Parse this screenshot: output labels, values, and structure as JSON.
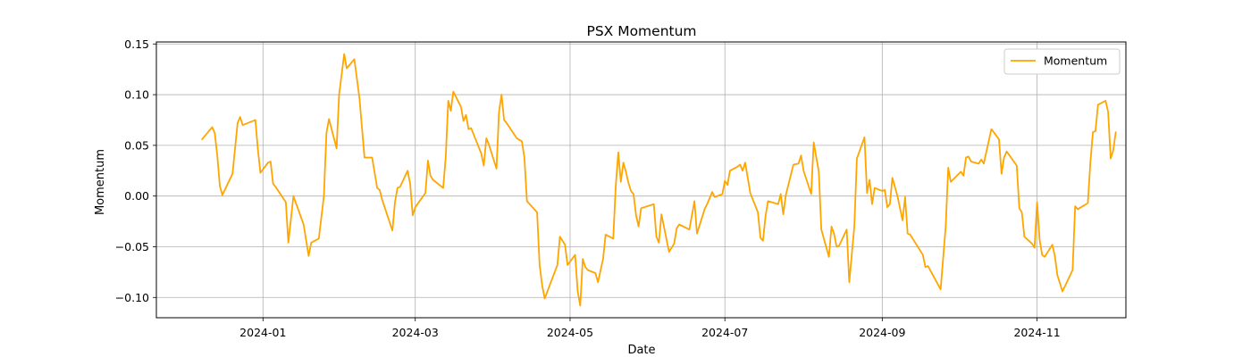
{
  "chart_data": {
    "type": "line",
    "title": "PSX Momentum",
    "xlabel": "Date",
    "ylabel": "Momentum",
    "xlim": [
      "2023-11-20",
      "2024-12-06"
    ],
    "ylim": [
      -0.12,
      0.152
    ],
    "grid": true,
    "legend_position": "top-right",
    "line_color": "#FFA500",
    "x_ticks": [
      {
        "label": "2024-01",
        "date": "2024-01-01"
      },
      {
        "label": "2024-03",
        "date": "2024-03-01"
      },
      {
        "label": "2024-05",
        "date": "2024-05-01"
      },
      {
        "label": "2024-07",
        "date": "2024-07-01"
      },
      {
        "label": "2024-09",
        "date": "2024-09-01"
      },
      {
        "label": "2024-11",
        "date": "2024-11-01"
      }
    ],
    "y_ticks": [
      {
        "label": "−0.10",
        "value": -0.1
      },
      {
        "label": "−0.05",
        "value": -0.05
      },
      {
        "label": "0.00",
        "value": 0.0
      },
      {
        "label": "0.05",
        "value": 0.05
      },
      {
        "label": "0.10",
        "value": 0.1
      },
      {
        "label": "0.15",
        "value": 0.15
      }
    ],
    "series": [
      {
        "name": "Momentum",
        "points": [
          [
            "2023-12-08",
            0.056
          ],
          [
            "2023-12-12",
            0.068
          ],
          [
            "2023-12-13",
            0.062
          ],
          [
            "2023-12-14",
            0.04
          ],
          [
            "2023-12-15",
            0.01
          ],
          [
            "2023-12-16",
            0.001
          ],
          [
            "2023-12-20",
            0.022
          ],
          [
            "2023-12-22",
            0.072
          ],
          [
            "2023-12-23",
            0.078
          ],
          [
            "2023-12-24",
            0.07
          ],
          [
            "2023-12-29",
            0.075
          ],
          [
            "2023-12-30",
            0.046
          ],
          [
            "2023-12-31",
            0.023
          ],
          [
            "2024-01-03",
            0.033
          ],
          [
            "2024-01-04",
            0.034
          ],
          [
            "2024-01-05",
            0.012
          ],
          [
            "2024-01-06",
            0.009
          ],
          [
            "2024-01-10",
            -0.006
          ],
          [
            "2024-01-11",
            -0.046
          ],
          [
            "2024-01-13",
            0.0
          ],
          [
            "2024-01-17",
            -0.028
          ],
          [
            "2024-01-19",
            -0.059
          ],
          [
            "2024-01-20",
            -0.046
          ],
          [
            "2024-01-23",
            -0.042
          ],
          [
            "2024-01-25",
            0.0
          ],
          [
            "2024-01-26",
            0.062
          ],
          [
            "2024-01-27",
            0.076
          ],
          [
            "2024-01-30",
            0.047
          ],
          [
            "2024-01-31",
            0.1
          ],
          [
            "2024-02-02",
            0.14
          ],
          [
            "2024-02-03",
            0.126
          ],
          [
            "2024-02-06",
            0.135
          ],
          [
            "2024-02-08",
            0.097
          ],
          [
            "2024-02-10",
            0.038
          ],
          [
            "2024-02-13",
            0.038
          ],
          [
            "2024-02-15",
            0.008
          ],
          [
            "2024-02-16",
            0.006
          ],
          [
            "2024-02-17",
            -0.004
          ],
          [
            "2024-02-21",
            -0.034
          ],
          [
            "2024-02-22",
            -0.006
          ],
          [
            "2024-02-23",
            0.008
          ],
          [
            "2024-02-24",
            0.009
          ],
          [
            "2024-02-27",
            0.025
          ],
          [
            "2024-02-28",
            0.012
          ],
          [
            "2024-02-29",
            -0.019
          ],
          [
            "2024-03-01",
            -0.011
          ],
          [
            "2024-03-05",
            0.003
          ],
          [
            "2024-03-06",
            0.035
          ],
          [
            "2024-03-07",
            0.02
          ],
          [
            "2024-03-08",
            0.016
          ],
          [
            "2024-03-12",
            0.008
          ],
          [
            "2024-03-13",
            0.038
          ],
          [
            "2024-03-14",
            0.094
          ],
          [
            "2024-03-15",
            0.084
          ],
          [
            "2024-03-16",
            0.103
          ],
          [
            "2024-03-19",
            0.088
          ],
          [
            "2024-03-20",
            0.074
          ],
          [
            "2024-03-21",
            0.08
          ],
          [
            "2024-03-22",
            0.066
          ],
          [
            "2024-03-23",
            0.067
          ],
          [
            "2024-03-27",
            0.042
          ],
          [
            "2024-03-28",
            0.03
          ],
          [
            "2024-03-29",
            0.057
          ],
          [
            "2024-03-30",
            0.051
          ],
          [
            "2024-04-02",
            0.027
          ],
          [
            "2024-04-03",
            0.083
          ],
          [
            "2024-04-04",
            0.1
          ],
          [
            "2024-04-05",
            0.075
          ],
          [
            "2024-04-06",
            0.072
          ],
          [
            "2024-04-10",
            0.057
          ],
          [
            "2024-04-12",
            0.054
          ],
          [
            "2024-04-13",
            0.038
          ],
          [
            "2024-04-14",
            -0.005
          ],
          [
            "2024-04-18",
            -0.016
          ],
          [
            "2024-04-19",
            -0.068
          ],
          [
            "2024-04-20",
            -0.088
          ],
          [
            "2024-04-21",
            -0.101
          ],
          [
            "2024-04-26",
            -0.068
          ],
          [
            "2024-04-27",
            -0.04
          ],
          [
            "2024-04-29",
            -0.048
          ],
          [
            "2024-04-30",
            -0.068
          ],
          [
            "2024-05-03",
            -0.058
          ],
          [
            "2024-05-04",
            -0.094
          ],
          [
            "2024-05-05",
            -0.108
          ],
          [
            "2024-05-06",
            -0.062
          ],
          [
            "2024-05-07",
            -0.07
          ],
          [
            "2024-05-08",
            -0.073
          ],
          [
            "2024-05-11",
            -0.076
          ],
          [
            "2024-05-12",
            -0.085
          ],
          [
            "2024-05-14",
            -0.062
          ],
          [
            "2024-05-15",
            -0.038
          ],
          [
            "2024-05-18",
            -0.042
          ],
          [
            "2024-05-19",
            0.01
          ],
          [
            "2024-05-20",
            0.043
          ],
          [
            "2024-05-21",
            0.014
          ],
          [
            "2024-05-22",
            0.033
          ],
          [
            "2024-05-23",
            0.024
          ],
          [
            "2024-05-24",
            0.013
          ],
          [
            "2024-05-25",
            0.005
          ],
          [
            "2024-05-26",
            0.002
          ],
          [
            "2024-05-27",
            -0.019
          ],
          [
            "2024-05-28",
            -0.03
          ],
          [
            "2024-05-29",
            -0.012
          ],
          [
            "2024-06-03",
            -0.008
          ],
          [
            "2024-06-04",
            -0.04
          ],
          [
            "2024-06-05",
            -0.046
          ],
          [
            "2024-06-06",
            -0.018
          ],
          [
            "2024-06-09",
            -0.055
          ],
          [
            "2024-06-11",
            -0.047
          ],
          [
            "2024-06-12",
            -0.032
          ],
          [
            "2024-06-13",
            -0.028
          ],
          [
            "2024-06-17",
            -0.033
          ],
          [
            "2024-06-19",
            -0.005
          ],
          [
            "2024-06-20",
            -0.037
          ],
          [
            "2024-06-23",
            -0.013
          ],
          [
            "2024-06-24",
            -0.008
          ],
          [
            "2024-06-26",
            0.004
          ],
          [
            "2024-06-27",
            -0.001
          ],
          [
            "2024-06-30",
            0.002
          ],
          [
            "2024-07-01",
            0.015
          ],
          [
            "2024-07-02",
            0.011
          ],
          [
            "2024-07-03",
            0.025
          ],
          [
            "2024-07-06",
            0.029
          ],
          [
            "2024-07-07",
            0.031
          ],
          [
            "2024-07-08",
            0.025
          ],
          [
            "2024-07-09",
            0.033
          ],
          [
            "2024-07-11",
            0.003
          ],
          [
            "2024-07-14",
            -0.016
          ],
          [
            "2024-07-15",
            -0.041
          ],
          [
            "2024-07-16",
            -0.044
          ],
          [
            "2024-07-17",
            -0.02
          ],
          [
            "2024-07-18",
            -0.005
          ],
          [
            "2024-07-22",
            -0.008
          ],
          [
            "2024-07-23",
            0.002
          ],
          [
            "2024-07-24",
            -0.018
          ],
          [
            "2024-07-25",
            0.001
          ],
          [
            "2024-07-28",
            0.031
          ],
          [
            "2024-07-30",
            0.032
          ],
          [
            "2024-07-31",
            0.04
          ],
          [
            "2024-08-01",
            0.025
          ],
          [
            "2024-08-04",
            0.002
          ],
          [
            "2024-08-05",
            0.053
          ],
          [
            "2024-08-07",
            0.024
          ],
          [
            "2024-08-08",
            -0.033
          ],
          [
            "2024-08-11",
            -0.06
          ],
          [
            "2024-08-12",
            -0.03
          ],
          [
            "2024-08-13",
            -0.037
          ],
          [
            "2024-08-14",
            -0.05
          ],
          [
            "2024-08-15",
            -0.049
          ],
          [
            "2024-08-18",
            -0.033
          ],
          [
            "2024-08-19",
            -0.085
          ],
          [
            "2024-08-21",
            -0.03
          ],
          [
            "2024-08-22",
            0.037
          ],
          [
            "2024-08-25",
            0.058
          ],
          [
            "2024-08-26",
            0.003
          ],
          [
            "2024-08-27",
            0.016
          ],
          [
            "2024-08-28",
            -0.008
          ],
          [
            "2024-08-29",
            0.008
          ],
          [
            "2024-09-01",
            0.005
          ],
          [
            "2024-09-02",
            0.006
          ],
          [
            "2024-09-03",
            -0.011
          ],
          [
            "2024-09-04",
            -0.008
          ],
          [
            "2024-09-05",
            0.018
          ],
          [
            "2024-09-07",
            0.0
          ],
          [
            "2024-09-09",
            -0.024
          ],
          [
            "2024-09-10",
            -0.001
          ],
          [
            "2024-09-11",
            -0.037
          ],
          [
            "2024-09-12",
            -0.038
          ],
          [
            "2024-09-17",
            -0.058
          ],
          [
            "2024-09-18",
            -0.07
          ],
          [
            "2024-09-19",
            -0.069
          ],
          [
            "2024-09-24",
            -0.092
          ],
          [
            "2024-09-26",
            -0.03
          ],
          [
            "2024-09-27",
            0.028
          ],
          [
            "2024-09-28",
            0.014
          ],
          [
            "2024-10-02",
            0.024
          ],
          [
            "2024-10-03",
            0.02
          ],
          [
            "2024-10-04",
            0.038
          ],
          [
            "2024-10-05",
            0.039
          ],
          [
            "2024-10-06",
            0.034
          ],
          [
            "2024-10-09",
            0.032
          ],
          [
            "2024-10-10",
            0.036
          ],
          [
            "2024-10-11",
            0.032
          ],
          [
            "2024-10-14",
            0.066
          ],
          [
            "2024-10-17",
            0.056
          ],
          [
            "2024-10-18",
            0.022
          ],
          [
            "2024-10-19",
            0.038
          ],
          [
            "2024-10-20",
            0.044
          ],
          [
            "2024-10-24",
            0.03
          ],
          [
            "2024-10-25",
            -0.012
          ],
          [
            "2024-10-26",
            -0.016
          ],
          [
            "2024-10-27",
            -0.04
          ],
          [
            "2024-10-30",
            -0.047
          ],
          [
            "2024-10-31",
            -0.051
          ],
          [
            "2024-11-01",
            -0.006
          ],
          [
            "2024-11-02",
            -0.043
          ],
          [
            "2024-11-03",
            -0.058
          ],
          [
            "2024-11-04",
            -0.06
          ],
          [
            "2024-11-07",
            -0.048
          ],
          [
            "2024-11-08",
            -0.059
          ],
          [
            "2024-11-09",
            -0.078
          ],
          [
            "2024-11-11",
            -0.094
          ],
          [
            "2024-11-15",
            -0.073
          ],
          [
            "2024-11-16",
            -0.01
          ],
          [
            "2024-11-17",
            -0.013
          ],
          [
            "2024-11-21",
            -0.007
          ],
          [
            "2024-11-22",
            0.033
          ],
          [
            "2024-11-23",
            0.063
          ],
          [
            "2024-11-24",
            0.064
          ],
          [
            "2024-11-25",
            0.09
          ],
          [
            "2024-11-28",
            0.094
          ],
          [
            "2024-11-29",
            0.083
          ],
          [
            "2024-11-30",
            0.037
          ],
          [
            "2024-12-01",
            0.045
          ],
          [
            "2024-12-02",
            0.063
          ]
        ]
      }
    ]
  }
}
